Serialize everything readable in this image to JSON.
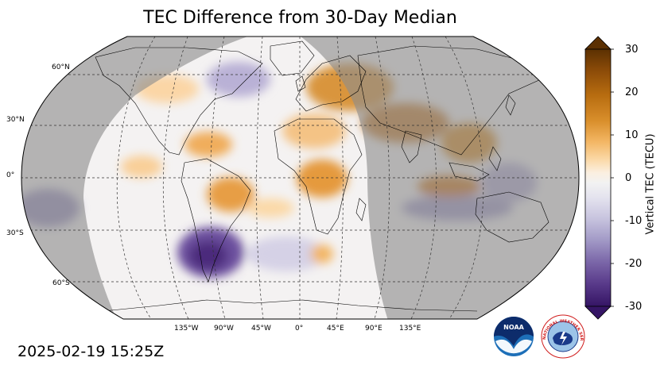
{
  "title": "TEC Difference from 30-Day Median",
  "timestamp": "2025-02-19 15:25Z",
  "map": {
    "projection": "Robinson",
    "night_shading": "grey",
    "gridlines": "dashed",
    "lat_labels": [
      "60°N",
      "30°N",
      "0°",
      "30°S",
      "60°S"
    ],
    "lon_labels": [
      "135°W",
      "90°W",
      "45°W",
      "0°",
      "45°E",
      "90°E",
      "135°E"
    ],
    "anomalies": [
      {
        "region": "Southern South America",
        "sign": "negative",
        "value": -25
      },
      {
        "region": "Central North Atlantic",
        "sign": "positive",
        "value": 12
      },
      {
        "region": "Eastern Europe / Middle East",
        "sign": "positive",
        "value": 18
      },
      {
        "region": "Southeast Asia",
        "sign": "positive",
        "value": 15
      },
      {
        "region": "Equatorial West Africa",
        "sign": "positive",
        "value": 12
      }
    ]
  },
  "colorbar": {
    "label": "Vertical TEC (TECU)",
    "ticks": [
      "30",
      "20",
      "10",
      "0",
      "-10",
      "-20",
      "-30"
    ],
    "min": -30,
    "max": 30,
    "colormap": "PuOr_r",
    "extend": "both",
    "colors_top_to_bottom": [
      "#5b3002",
      "#8a4a08",
      "#b86d10",
      "#d98f2c",
      "#f3b664",
      "#fbd9a8",
      "#fbefe0",
      "#f2f2f2",
      "#e3e2ee",
      "#c7c3de",
      "#a39bc7",
      "#7e6bab",
      "#5a3b8b",
      "#351565"
    ]
  },
  "logos": {
    "noaa_text": "NOAA",
    "nws_text": "NATIONAL WEATHER SERVICE"
  }
}
